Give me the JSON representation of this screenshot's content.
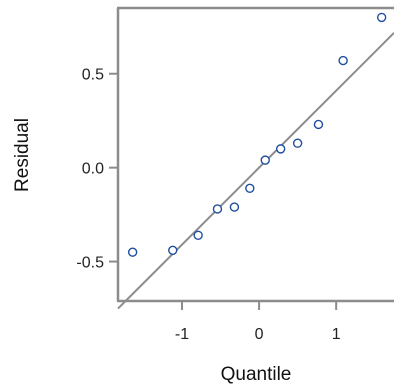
{
  "chart_data": {
    "type": "scatter",
    "title": "",
    "xlabel": "Quantile",
    "ylabel": "Residual",
    "xlim": [
      -1.83,
      1.75
    ],
    "ylim": [
      -0.71,
      0.85
    ],
    "x_ticks": [
      {
        "value": -1,
        "label": "-1"
      },
      {
        "value": 0,
        "label": "0"
      },
      {
        "value": 1,
        "label": "1"
      }
    ],
    "y_ticks": [
      {
        "value": 0.5,
        "label": "0.5"
      },
      {
        "value": 0.0,
        "label": "0.0"
      },
      {
        "value": -0.5,
        "label": "-0.5"
      }
    ],
    "grid": false,
    "series": [
      {
        "points": [
          {
            "x": -1.64,
            "y": -0.45
          },
          {
            "x": -1.12,
            "y": -0.44
          },
          {
            "x": -0.79,
            "y": -0.36
          },
          {
            "x": -0.54,
            "y": -0.22
          },
          {
            "x": -0.32,
            "y": -0.21
          },
          {
            "x": -0.12,
            "y": -0.11
          },
          {
            "x": 0.08,
            "y": 0.04
          },
          {
            "x": 0.28,
            "y": 0.1
          },
          {
            "x": 0.5,
            "y": 0.13
          },
          {
            "x": 0.77,
            "y": 0.23
          },
          {
            "x": 1.09,
            "y": 0.57
          },
          {
            "x": 1.59,
            "y": 0.8
          }
        ]
      }
    ],
    "reference_line": {
      "intercept": 0.0,
      "slope": 0.41
    },
    "colors": {
      "marker": "#1f4e9e",
      "line": "#8c8c8c",
      "frame": "#8c8c8c"
    }
  }
}
